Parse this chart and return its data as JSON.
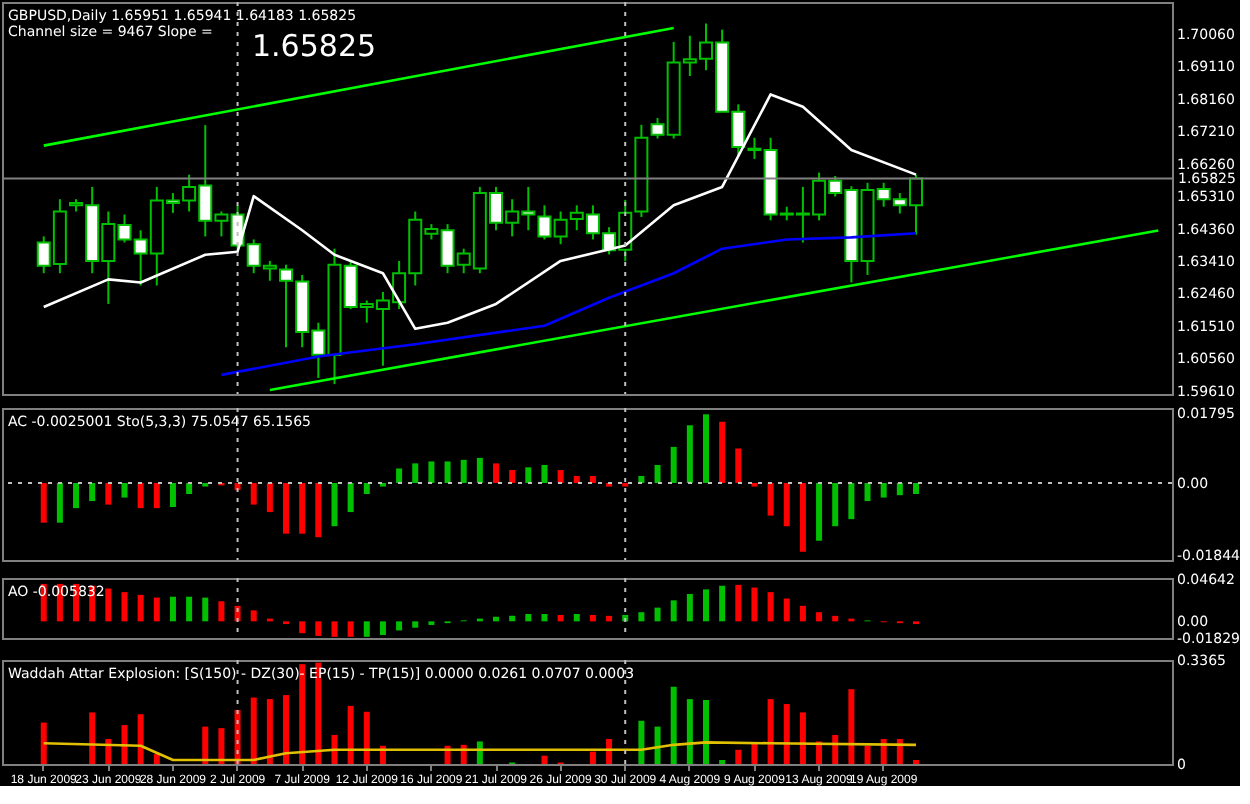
{
  "chart_data": [
    {
      "type": "candlestick",
      "title": "GBPUSD,Daily  1.65951 1.65941 1.64183 1.65825",
      "subtitle": "Channel size = 9467 Slope =",
      "annotations": [
        "1.65825"
      ],
      "categories": [
        "18 Jun 2009",
        null,
        null,
        null,
        "23 Jun 2009",
        null,
        null,
        null,
        "28 Jun 2009",
        null,
        null,
        null,
        "2 Jul 2009",
        null,
        null,
        null,
        "7 Jul 2009",
        null,
        null,
        null,
        "12 Jul 2009",
        null,
        null,
        null,
        "16 Jul 2009",
        null,
        null,
        null,
        "21 Jul 2009",
        null,
        null,
        null,
        "26 Jul 2009",
        null,
        null,
        null,
        "30 Jul 2009",
        null,
        null,
        null,
        "4 Aug 2009",
        null,
        null,
        null,
        "9 Aug 2009",
        null,
        null,
        null,
        "13 Aug 2009",
        null,
        null,
        null,
        "19 Aug 2009",
        null,
        null,
        null,
        null,
        null,
        null,
        null,
        null,
        null,
        null,
        null,
        null,
        null,
        null,
        null,
        null,
        null
      ],
      "ohlc": [
        [
          1.6395,
          1.6413,
          1.6305,
          1.6327
        ],
        [
          1.6332,
          1.6522,
          1.6305,
          1.6486
        ],
        [
          1.6504,
          1.6522,
          1.6486,
          1.6511
        ],
        [
          1.6504,
          1.6558,
          1.6305,
          1.6341
        ],
        [
          1.6341,
          1.6486,
          1.6215,
          1.6449
        ],
        [
          1.6446,
          1.6477,
          1.6395,
          1.6404
        ],
        [
          1.6404,
          1.6431,
          1.6269,
          1.6363
        ],
        [
          1.6363,
          1.6558,
          1.6269,
          1.6518
        ],
        [
          1.6518,
          1.654,
          1.6482,
          1.6511
        ],
        [
          1.6518,
          1.6594,
          1.6486,
          1.6558
        ],
        [
          1.6562,
          1.6739,
          1.6413,
          1.6459
        ],
        [
          1.6459,
          1.6486,
          1.6413,
          1.6477
        ],
        [
          1.6477,
          1.6504,
          1.6377,
          1.6386
        ],
        [
          1.639,
          1.6404,
          1.6305,
          1.6327
        ],
        [
          1.6319,
          1.6341,
          1.6283,
          1.6327
        ],
        [
          1.6316,
          1.633,
          1.6088,
          1.6283
        ],
        [
          1.6281,
          1.63,
          1.6088,
          1.6133
        ],
        [
          1.6137,
          1.616,
          1.5998,
          1.6066
        ],
        [
          1.6065,
          1.6377,
          1.598,
          1.633
        ],
        [
          1.6327,
          1.6341,
          1.62,
          1.6206
        ],
        [
          1.6206,
          1.6225,
          1.616,
          1.6215
        ],
        [
          1.62,
          1.625,
          1.6034,
          1.6225
        ],
        [
          1.622,
          1.6341,
          1.62,
          1.6305
        ],
        [
          1.6305,
          1.6486,
          1.6269,
          1.6462
        ],
        [
          1.6421,
          1.6449,
          1.6404,
          1.6435
        ],
        [
          1.6431,
          1.6449,
          1.6305,
          1.6327
        ],
        [
          1.633,
          1.6377,
          1.6305,
          1.6363
        ],
        [
          1.6319,
          1.6558,
          1.6305,
          1.654
        ],
        [
          1.654,
          1.6558,
          1.6431,
          1.6453
        ],
        [
          1.6453,
          1.6522,
          1.6413,
          1.6486
        ],
        [
          1.6486,
          1.6558,
          1.6431,
          1.6477
        ],
        [
          1.6471,
          1.6504,
          1.6404,
          1.6413
        ],
        [
          1.6413,
          1.6486,
          1.639,
          1.6462
        ],
        [
          1.6464,
          1.6504,
          1.6431,
          1.6482
        ],
        [
          1.6477,
          1.6504,
          1.6404,
          1.6422
        ],
        [
          1.6422,
          1.644,
          1.636,
          1.6372
        ],
        [
          1.6374,
          1.652,
          1.634,
          1.6482
        ],
        [
          1.6486,
          1.674,
          1.647,
          1.6702
        ],
        [
          1.6742,
          1.676,
          1.67,
          1.6711
        ],
        [
          1.6711,
          1.6983,
          1.67,
          1.6923
        ],
        [
          1.6923,
          1.7001,
          1.6883,
          1.6932
        ],
        [
          1.6934,
          1.7037,
          1.69,
          1.6981
        ],
        [
          1.6981,
          1.7019,
          1.6778,
          1.6778
        ],
        [
          1.6778,
          1.68,
          1.6648,
          1.6675
        ],
        [
          1.6666,
          1.6702,
          1.664,
          1.667
        ],
        [
          1.6666,
          1.6702,
          1.646,
          1.6477
        ],
        [
          1.6477,
          1.65,
          1.646,
          1.648
        ],
        [
          1.648,
          1.6558,
          1.6395,
          1.6477
        ],
        [
          1.6477,
          1.66,
          1.646,
          1.6576
        ],
        [
          1.6576,
          1.659,
          1.653,
          1.654
        ],
        [
          1.6549,
          1.656,
          1.6278,
          1.6341
        ],
        [
          1.6341,
          1.657,
          1.63,
          1.6549
        ],
        [
          1.6552,
          1.657,
          1.65,
          1.6522
        ],
        [
          1.6522,
          1.654,
          1.648,
          1.6504
        ],
        [
          1.6504,
          1.6594,
          1.6418,
          1.6583
        ],
        null,
        null,
        null,
        null,
        null,
        null,
        null,
        null,
        null,
        null,
        null,
        null,
        null,
        null,
        null
      ],
      "series": [
        {
          "type": "line",
          "color": "#00ff00",
          "values": [
            1.6679,
            null,
            null,
            null,
            null,
            null,
            null,
            null,
            null,
            null,
            null,
            null,
            null,
            null,
            null,
            null,
            null,
            null,
            null,
            null,
            null,
            null,
            null,
            null,
            null,
            null,
            null,
            null,
            null,
            null,
            null,
            null,
            null,
            null,
            null,
            null,
            null,
            null,
            null,
            1.7024,
            null,
            null,
            null,
            null,
            null,
            null,
            null,
            null,
            null,
            null,
            null,
            null,
            null,
            null,
            null,
            null,
            null,
            null,
            null,
            null,
            null,
            null,
            null,
            null,
            null,
            null,
            null,
            null,
            null,
            null
          ]
        },
        {
          "type": "line",
          "color": "#00ff00",
          "values": [
            null,
            null,
            null,
            null,
            null,
            null,
            null,
            null,
            null,
            null,
            null,
            null,
            null,
            null,
            1.5963,
            null,
            null,
            null,
            null,
            null,
            null,
            null,
            null,
            null,
            null,
            null,
            null,
            null,
            null,
            null,
            null,
            null,
            null,
            null,
            null,
            null,
            null,
            null,
            null,
            null,
            null,
            null,
            null,
            null,
            null,
            null,
            null,
            null,
            null,
            null,
            null,
            null,
            null,
            null,
            null,
            null,
            null,
            null,
            null,
            null,
            null,
            null,
            null,
            null,
            null,
            null,
            null,
            null,
            null,
            1.643
          ]
        },
        {
          "type": "line",
          "color": "#ffffff",
          "values": [
            1.6206,
            null,
            null,
            null,
            1.6287,
            null,
            1.6278,
            null,
            null,
            null,
            1.6359,
            null,
            1.6368,
            1.6531,
            null,
            null,
            1.6431,
            null,
            1.6359,
            null,
            null,
            1.6305,
            null,
            1.6142,
            null,
            1.616,
            null,
            null,
            1.6215,
            null,
            null,
            null,
            1.6341,
            null,
            null,
            null,
            1.6386,
            null,
            null,
            1.6504,
            null,
            null,
            1.6558,
            null,
            null,
            1.6829,
            null,
            1.6793,
            null,
            null,
            1.6666,
            null,
            null,
            null,
            1.6594,
            null,
            null,
            null,
            null,
            null,
            null,
            null,
            null,
            null,
            null,
            null,
            null,
            null,
            null,
            null
          ]
        },
        {
          "type": "line",
          "color": "#0000ff",
          "values": [
            null,
            null,
            null,
            null,
            null,
            null,
            null,
            null,
            null,
            null,
            null,
            1.6007,
            null,
            null,
            null,
            null,
            null,
            1.6061,
            null,
            null,
            null,
            null,
            null,
            1.6097,
            null,
            null,
            null,
            null,
            null,
            null,
            null,
            1.6151,
            null,
            null,
            null,
            1.6233,
            null,
            null,
            null,
            1.6305,
            null,
            null,
            1.6377,
            null,
            null,
            null,
            1.6404,
            null,
            null,
            null,
            1.641,
            null,
            null,
            null,
            1.6422,
            null,
            null,
            null,
            null,
            null,
            null,
            null,
            null,
            null,
            null,
            null,
            null,
            null,
            null,
            null
          ]
        }
      ],
      "ylim": [
        1.5951,
        1.71
      ],
      "yticks": [
        {
          "value": 1.7006,
          "label": "1.70060"
        },
        {
          "value": 1.6911,
          "label": "1.69110"
        },
        {
          "value": 1.6816,
          "label": "1.68160"
        },
        {
          "value": 1.6721,
          "label": "1.67210"
        },
        {
          "value": 1.6626,
          "label": "1.66260"
        },
        {
          "value": 1.6531,
          "label": "1.65310"
        },
        {
          "value": 1.6436,
          "label": "1.64360"
        },
        {
          "value": 1.6341,
          "label": "1.63410"
        },
        {
          "value": 1.6246,
          "label": "1.62460"
        },
        {
          "value": 1.6151,
          "label": "1.61510"
        },
        {
          "value": 1.6056,
          "label": "1.60560"
        },
        {
          "value": 1.5961,
          "label": "1.59610"
        }
      ],
      "ref_lines": [
        {
          "axis": "y",
          "value": 1.65825,
          "label": "1.65825",
          "color": "#808080",
          "line_style": "solid"
        },
        {
          "axis": "x",
          "value": "2 Jul 2009",
          "color": "#c0c0c0",
          "line_style": "dotted"
        },
        {
          "axis": "x",
          "value": "30 Jul 2009",
          "color": "#c0c0c0",
          "line_style": "dotted"
        }
      ],
      "tick_labels": "y"
    },
    {
      "type": "bar",
      "title": "AC -0.0025001  Sto(5,3,3) 75.0547 65.1565",
      "categories": [
        "18 Jun 2009",
        null,
        null,
        null,
        "23 Jun 2009",
        null,
        null,
        null,
        "28 Jun 2009",
        null,
        null,
        null,
        "2 Jul 2009",
        null,
        null,
        null,
        "7 Jul 2009",
        null,
        null,
        null,
        "12 Jul 2009",
        null,
        null,
        null,
        "16 Jul 2009",
        null,
        null,
        null,
        "21 Jul 2009",
        null,
        null,
        null,
        "26 Jul 2009",
        null,
        null,
        null,
        "30 Jul 2009",
        null,
        null,
        null,
        "4 Aug 2009",
        null,
        null,
        null,
        "9 Aug 2009",
        null,
        null,
        null,
        "13 Aug 2009",
        null,
        null,
        null,
        "19 Aug 2009",
        null,
        null,
        null,
        null,
        null,
        null,
        null,
        null,
        null,
        null,
        null,
        null,
        null,
        null,
        null,
        null,
        null
      ],
      "values": [
        -0.0101,
        -0.0101,
        -0.0064,
        -0.0046,
        -0.0055,
        -0.0037,
        -0.0064,
        -0.0064,
        -0.0061,
        -0.0028,
        -0.0009,
        -0.0006,
        -0.0018,
        -0.0055,
        -0.0074,
        -0.0129,
        -0.0129,
        -0.0138,
        -0.011,
        -0.0074,
        -0.0028,
        -0.0009,
        0.0037,
        0.005,
        0.0055,
        0.0055,
        0.0059,
        0.0064,
        0.005,
        0.0033,
        0.004,
        0.0046,
        0.0033,
        0.0018,
        0.0018,
        -0.0009,
        -0.0009,
        0.0018,
        0.0046,
        0.0092,
        0.0147,
        0.0175,
        0.0156,
        0.0088,
        -0.0009,
        -0.0083,
        -0.011,
        -0.0175,
        -0.0147,
        -0.011,
        -0.0092,
        -0.0046,
        -0.0037,
        -0.0031,
        -0.0028,
        null,
        null,
        null,
        null,
        null,
        null,
        null,
        null,
        null,
        null,
        null,
        null,
        null,
        null,
        null
      ],
      "colors": [
        "#ff0000",
        "#00c000",
        "#00c000",
        "#00c000",
        "#ff0000",
        "#00c000",
        "#ff0000",
        "#ff0000",
        "#00c000",
        "#00c000",
        "#00c000",
        "#ff0000",
        "#ff0000",
        "#ff0000",
        "#ff0000",
        "#ff0000",
        "#ff0000",
        "#ff0000",
        "#00c000",
        "#00c000",
        "#00c000",
        "#00c000",
        "#00c000",
        "#00c000",
        "#00c000",
        "#00c000",
        "#00c000",
        "#00c000",
        "#ff0000",
        "#ff0000",
        "#00c000",
        "#00c000",
        "#ff0000",
        "#ff0000",
        "#ff0000",
        "#ff0000",
        "#ff0000",
        "#00c000",
        "#00c000",
        "#00c000",
        "#00c000",
        "#00c000",
        "#ff0000",
        "#ff0000",
        "#ff0000",
        "#ff0000",
        "#ff0000",
        "#ff0000",
        "#00c000",
        "#00c000",
        "#00c000",
        "#00c000",
        "#00c000",
        "#00c000",
        "#00c000",
        "#000000",
        "#000000",
        "#000000",
        "#000000",
        "#000000",
        "#000000",
        "#000000",
        "#000000",
        "#000000",
        "#000000",
        "#000000",
        "#000000",
        "#000000",
        "#000000",
        "#000000"
      ],
      "ylim": [
        -0.0196,
        0.0191
      ],
      "yticks": [
        {
          "value": 0.01795,
          "label": "0.01795"
        },
        {
          "value": 0,
          "label": "0.00"
        },
        {
          "value": -0.01844,
          "label": "-0.01844"
        }
      ],
      "ref_lines": [
        {
          "axis": "y",
          "value": 0,
          "color": "#c0c0c0",
          "line_style": "dotted"
        },
        {
          "axis": "x",
          "value": "2 Jul 2009",
          "color": "#c0c0c0",
          "line_style": "dotted"
        },
        {
          "axis": "x",
          "value": "30 Jul 2009",
          "color": "#c0c0c0",
          "line_style": "dotted"
        }
      ],
      "tick_labels": "y"
    },
    {
      "type": "bar",
      "title": "AO -0.005832",
      "categories": [
        "18 Jun 2009",
        null,
        null,
        null,
        "23 Jun 2009",
        null,
        null,
        null,
        "28 Jun 2009",
        null,
        null,
        null,
        "2 Jul 2009",
        null,
        null,
        null,
        "7 Jul 2009",
        null,
        null,
        null,
        "12 Jul 2009",
        null,
        null,
        null,
        "16 Jul 2009",
        null,
        null,
        null,
        "21 Jul 2009",
        null,
        null,
        null,
        "26 Jul 2009",
        null,
        null,
        null,
        "30 Jul 2009",
        null,
        null,
        null,
        "4 Aug 2009",
        null,
        null,
        null,
        "9 Aug 2009",
        null,
        null,
        null,
        "13 Aug 2009",
        null,
        null,
        null,
        "19 Aug 2009",
        null,
        null,
        null,
        null,
        null,
        null,
        null,
        null,
        null,
        null,
        null,
        null,
        null,
        null,
        null,
        null,
        null
      ],
      "values": [
        0.041,
        0.041,
        0.041,
        0.039,
        0.036,
        0.032,
        0.029,
        0.026,
        0.027,
        0.027,
        0.026,
        0.022,
        0.017,
        0.012,
        0.003,
        -0.003,
        -0.013,
        -0.016,
        -0.017,
        -0.017,
        -0.017,
        -0.015,
        -0.01,
        -0.007,
        -0.004,
        -0.002,
        0.001,
        0.003,
        0.005,
        0.006,
        0.008,
        0.008,
        0.007,
        0.008,
        0.007,
        0.006,
        0.007,
        0.01,
        0.015,
        0.023,
        0.03,
        0.035,
        0.039,
        0.04,
        0.037,
        0.032,
        0.025,
        0.017,
        0.01,
        0.006,
        0.003,
        0.001,
        -0.001,
        -0.002,
        -0.003,
        null,
        null,
        null,
        null,
        null,
        null,
        null,
        null,
        null,
        null,
        null,
        null,
        null,
        null,
        null
      ],
      "colors": [
        "#ff0000",
        "#ff0000",
        "#ff0000",
        "#ff0000",
        "#ff0000",
        "#ff0000",
        "#ff0000",
        "#ff0000",
        "#00c000",
        "#00c000",
        "#00c000",
        "#ff0000",
        "#ff0000",
        "#ff0000",
        "#ff0000",
        "#ff0000",
        "#ff0000",
        "#ff0000",
        "#ff0000",
        "#ff0000",
        "#00c000",
        "#00c000",
        "#00c000",
        "#00c000",
        "#00c000",
        "#00c000",
        "#00c000",
        "#00c000",
        "#00c000",
        "#00c000",
        "#00c000",
        "#00c000",
        "#ff0000",
        "#00c000",
        "#ff0000",
        "#ff0000",
        "#00c000",
        "#00c000",
        "#00c000",
        "#00c000",
        "#00c000",
        "#00c000",
        "#00c000",
        "#ff0000",
        "#ff0000",
        "#ff0000",
        "#ff0000",
        "#ff0000",
        "#ff0000",
        "#ff0000",
        "#ff0000",
        "#00c000",
        "#ff0000",
        "#ff0000",
        "#ff0000",
        "#000000",
        "#000000",
        "#000000",
        "#000000",
        "#000000",
        "#000000",
        "#000000",
        "#000000",
        "#000000",
        "#000000",
        "#000000",
        "#000000",
        "#000000",
        "#000000",
        "#000000"
      ],
      "ylim": [
        -0.01829,
        0.0475
      ],
      "yticks": [
        {
          "value": 0.04642,
          "label": "0.04642"
        },
        {
          "value": 0,
          "label": "0.00"
        },
        {
          "value": -0.01829,
          "label": "-0.01829"
        }
      ],
      "ref_lines": [
        {
          "axis": "x",
          "value": "2 Jul 2009",
          "color": "#c0c0c0",
          "line_style": "dotted"
        },
        {
          "axis": "x",
          "value": "30 Jul 2009",
          "color": "#c0c0c0",
          "line_style": "dotted"
        }
      ],
      "tick_labels": "y"
    },
    {
      "type": "bar",
      "title": "Waddah Attar Explosion: [S(150) - DZ(30)- EP(15) - TP(15)] 0.0000 0.0261 0.0707 0.0003",
      "categories": [
        "18 Jun 2009",
        null,
        null,
        null,
        "23 Jun 2009",
        null,
        null,
        null,
        "28 Jun 2009",
        null,
        null,
        null,
        "2 Jul 2009",
        null,
        null,
        null,
        "7 Jul 2009",
        null,
        null,
        null,
        "12 Jul 2009",
        null,
        null,
        null,
        "16 Jul 2009",
        null,
        null,
        null,
        "21 Jul 2009",
        null,
        null,
        null,
        "26 Jul 2009",
        null,
        null,
        null,
        "30 Jul 2009",
        null,
        null,
        null,
        "4 Aug 2009",
        null,
        null,
        null,
        "9 Aug 2009",
        null,
        null,
        null,
        "13 Aug 2009",
        null,
        null,
        null,
        "19 Aug 2009",
        null,
        null,
        null,
        null,
        null,
        null,
        null,
        null,
        null,
        null,
        null,
        null,
        null,
        null,
        null,
        null,
        null
      ],
      "series": [
        {
          "type": "bar",
          "values": [
            0.134,
            null,
            null,
            0.167,
            0.081,
            0.126,
            0.161,
            0.032,
            null,
            null,
            0.121,
            0.116,
            0.175,
            0.215,
            0.21,
            0.223,
            0.323,
            0.328,
            0.094,
            0.188,
            0.169,
            0.059,
            null,
            null,
            null,
            0.059,
            0.062,
            0.073,
            null,
            0.005,
            null,
            0.027,
            0.005,
            null,
            0.04,
            0.081,
            null,
            0.14,
            0.121,
            0.25,
            0.21,
            0.207,
            0.013,
            0.046,
            0.067,
            0.21,
            0.194,
            0.167,
            0.073,
            0.094,
            0.242,
            0.059,
            0.081,
            0.081,
            0.013,
            null,
            null,
            null,
            null,
            null,
            null,
            null,
            null,
            null,
            null,
            null,
            null,
            null,
            null,
            null
          ],
          "colors": [
            "#ff0000",
            "#ff0000",
            "#ff0000",
            "#ff0000",
            "#ff0000",
            "#ff0000",
            "#ff0000",
            "#ff0000",
            "#ff0000",
            "#ff0000",
            "#ff0000",
            "#ff0000",
            "#ff0000",
            "#ff0000",
            "#ff0000",
            "#ff0000",
            "#ff0000",
            "#ff0000",
            "#ff0000",
            "#ff0000",
            "#ff0000",
            "#ff0000",
            "#ff0000",
            "#ff0000",
            "#ff0000",
            "#ff0000",
            "#ff0000",
            "#00c000",
            "#ff0000",
            "#00c000",
            "#ff0000",
            "#ff0000",
            "#ff0000",
            "#ff0000",
            "#ff0000",
            "#ff0000",
            "#ff0000",
            "#00c000",
            "#00c000",
            "#00c000",
            "#00c000",
            "#00c000",
            "#00c000",
            "#ff0000",
            "#ff0000",
            "#ff0000",
            "#ff0000",
            "#ff0000",
            "#ff0000",
            "#ff0000",
            "#ff0000",
            "#ff0000",
            "#ff0000",
            "#ff0000",
            "#ff0000",
            "#000000",
            "#000000",
            "#000000",
            "#000000",
            "#000000",
            "#000000",
            "#000000",
            "#000000",
            "#000000",
            "#000000",
            "#000000",
            "#000000",
            "#000000",
            "#000000",
            "#000000"
          ]
        },
        {
          "type": "line",
          "color": "#e0c000",
          "values": [
            0.067,
            null,
            null,
            null,
            null,
            null,
            0.059,
            null,
            0.013,
            null,
            null,
            null,
            null,
            0.013,
            null,
            0.035,
            null,
            null,
            0.046,
            null,
            null,
            null,
            null,
            null,
            null,
            null,
            null,
            null,
            null,
            null,
            0.046,
            null,
            null,
            null,
            null,
            0.046,
            null,
            0.046,
            null,
            0.062,
            null,
            0.07,
            null,
            null,
            null,
            0.067,
            null,
            null,
            null,
            null,
            null,
            null,
            null,
            null,
            0.062,
            null,
            null,
            null,
            null,
            null,
            null,
            null,
            null,
            null,
            null,
            null,
            null,
            null,
            null,
            null
          ]
        }
      ],
      "ylim": [
        0,
        0.3365
      ],
      "yticks": [
        {
          "value": 0.3365,
          "label": "0.3365"
        },
        0
      ],
      "ref_lines": [
        {
          "axis": "x",
          "value": "2 Jul 2009",
          "color": "#c0c0c0",
          "line_style": "dotted"
        },
        {
          "axis": "x",
          "value": "30 Jul 2009",
          "color": "#c0c0c0",
          "line_style": "dotted"
        }
      ]
    }
  ]
}
